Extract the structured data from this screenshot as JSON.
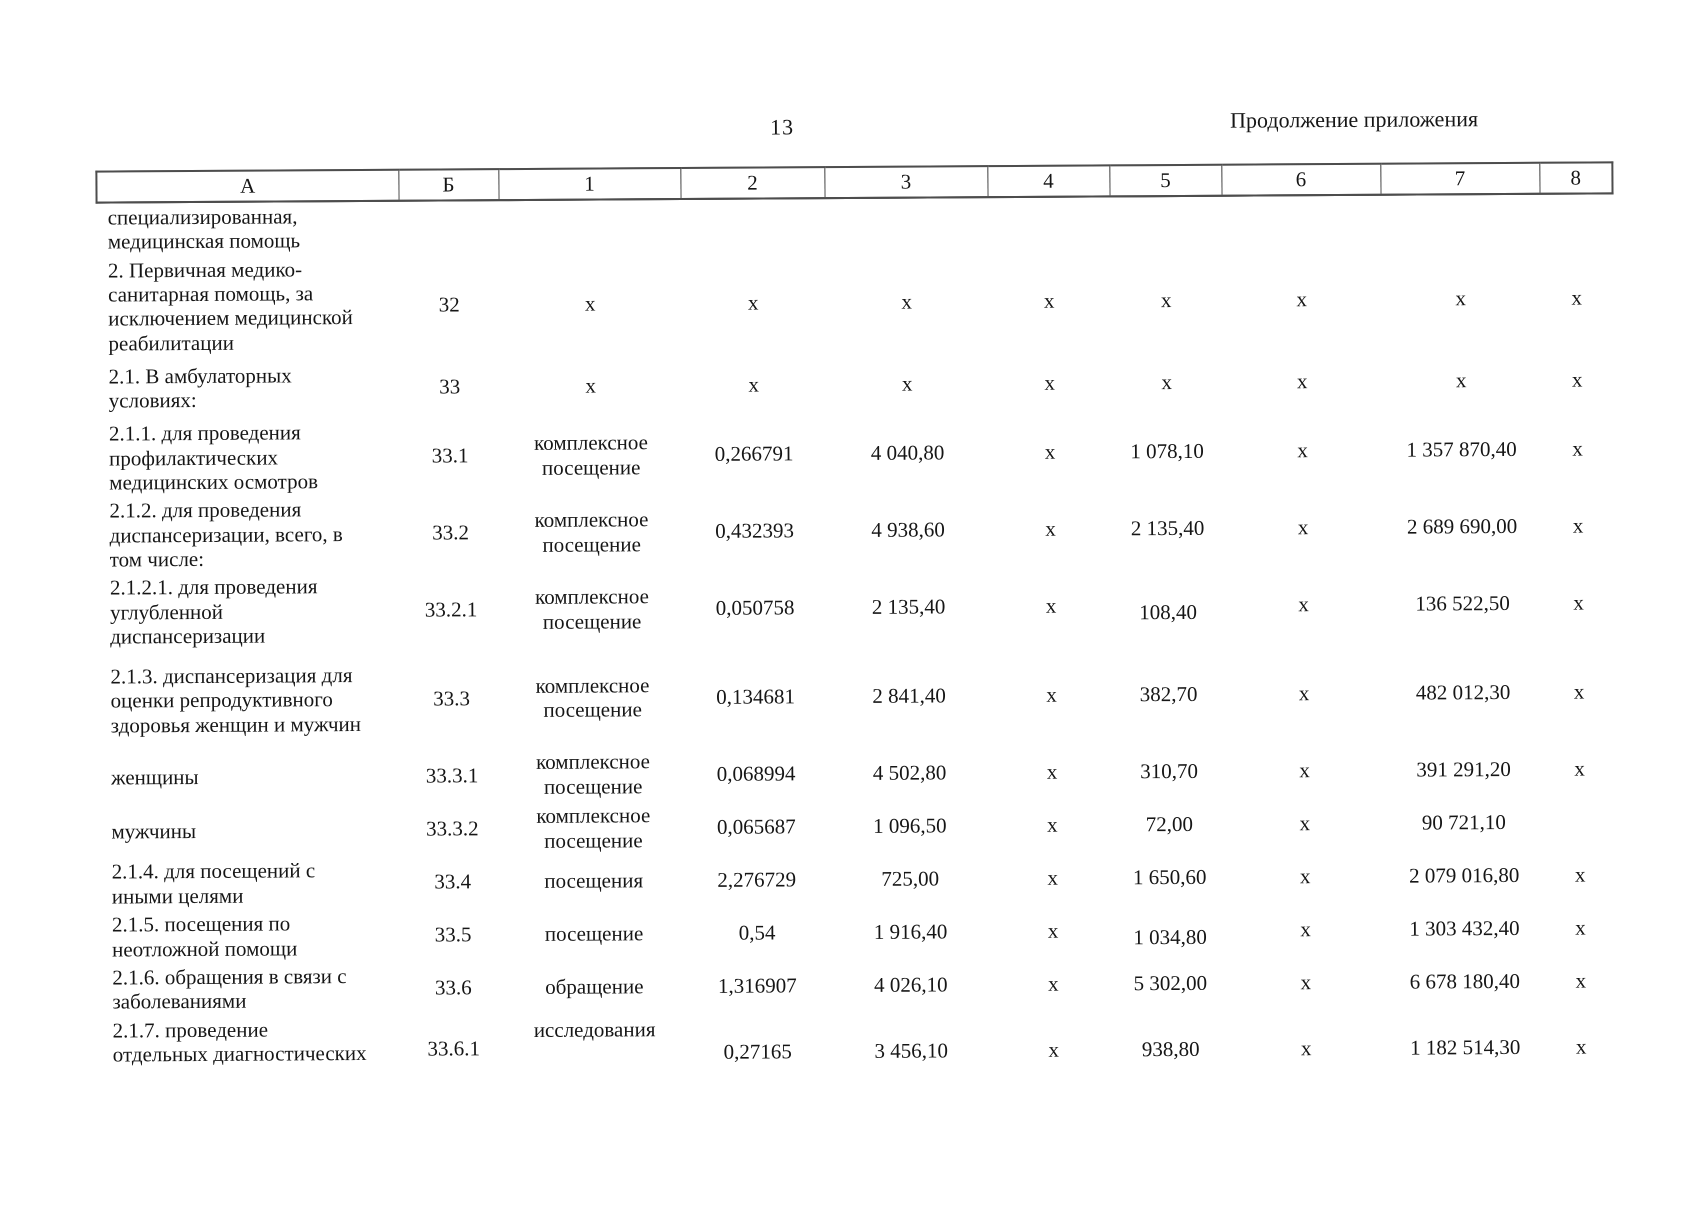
{
  "page": {
    "number": "13",
    "header_right": "Продолжение приложения"
  },
  "table": {
    "columns": [
      "А",
      "Б",
      "1",
      "2",
      "3",
      "4",
      "5",
      "6",
      "7",
      "8"
    ],
    "rows": [
      {
        "label": "специализированная, медицинская помощь",
        "cells": [
          "",
          "",
          "",
          "",
          "",
          "",
          "",
          "",
          ""
        ]
      },
      {
        "label": "2. Первичная медико-санитарная помощь, за исключением медицинской реабилитации",
        "cells": [
          "32",
          "х",
          "х",
          "х",
          "х",
          "х",
          "х",
          "х",
          "х"
        ]
      },
      {
        "label": "2.1. В амбулаторных условиях:",
        "cells": [
          "33",
          "х",
          "х",
          "х",
          "х",
          "х",
          "х",
          "х",
          "х"
        ]
      },
      {
        "label": "2.1.1. для проведения профилактических медицинских осмотров",
        "cells": [
          "33.1",
          "комплексное посещение",
          "0,266791",
          "4 040,80",
          "х",
          "1 078,10",
          "х",
          "1 357 870,40",
          "х"
        ]
      },
      {
        "label": "2.1.2. для проведения диспансеризации, всего, в том числе:",
        "cells": [
          "33.2",
          "комплексное посещение",
          "0,432393",
          "4 938,60",
          "х",
          "2 135,40",
          "х",
          "2 689 690,00",
          "х"
        ]
      },
      {
        "label": "2.1.2.1. для проведения углубленной диспансеризации",
        "cells": [
          "33.2.1",
          "комплексное посещение",
          "0,050758",
          "2 135,40",
          "х",
          "108,40",
          "х",
          "136 522,50",
          "х"
        ]
      },
      {
        "label": "2.1.3. диспансеризация для оценки репродуктивного здоровья женщин и мужчин",
        "cells": [
          "33.3",
          "комплексное посещение",
          "0,134681",
          "2 841,40",
          "х",
          "382,70",
          "х",
          "482 012,30",
          "х"
        ]
      },
      {
        "label": "женщины",
        "cells": [
          "33.3.1",
          "комплексное посещение",
          "0,068994",
          "4 502,80",
          "х",
          "310,70",
          "х",
          "391 291,20",
          "х"
        ]
      },
      {
        "label": "мужчины",
        "cells": [
          "33.3.2",
          "комплексное посещение",
          "0,065687",
          "1 096,50",
          "х",
          "72,00",
          "х",
          "90 721,10",
          ""
        ]
      },
      {
        "label": "2.1.4. для посещений с иными целями",
        "cells": [
          "33.4",
          "посещения",
          "2,276729",
          "725,00",
          "х",
          "1 650,60",
          "х",
          "2 079 016,80",
          "х"
        ]
      },
      {
        "label": "2.1.5. посещения по неотложной помощи",
        "cells": [
          "33.5",
          "посещение",
          "0,54",
          "1 916,40",
          "х",
          "1 034,80",
          "х",
          "1 303 432,40",
          "х"
        ]
      },
      {
        "label": "2.1.6. обращения в связи с заболеваниями",
        "cells": [
          "33.6",
          "обращение",
          "1,316907",
          "4 026,10",
          "х",
          "5 302,00",
          "х",
          "6 678 180,40",
          "х"
        ]
      },
      {
        "label": "2.1.7. проведение отдельных диагностических",
        "cells": [
          "33.6.1",
          "исследования",
          "0,27165",
          "3 456,10",
          "х",
          "938,80",
          "х",
          "1 182 514,30",
          "х"
        ]
      }
    ]
  }
}
